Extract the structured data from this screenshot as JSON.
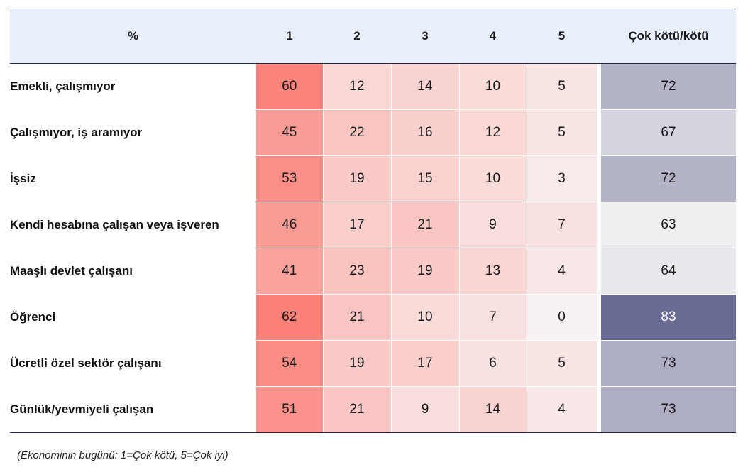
{
  "chart_data": {
    "type": "table",
    "columns": [
      "%",
      "1",
      "2",
      "3",
      "4",
      "5",
      "Çok kötü/kötü"
    ],
    "rows": [
      {
        "label": "Emekli, çalışmıyor",
        "values": [
          60,
          12,
          14,
          10,
          5
        ],
        "kotu": 72
      },
      {
        "label": "Çalışmıyor,  iş aramıyor",
        "values": [
          45,
          22,
          16,
          12,
          5
        ],
        "kotu": 67
      },
      {
        "label": "İşsiz",
        "values": [
          53,
          19,
          15,
          10,
          3
        ],
        "kotu": 72
      },
      {
        "label": "Kendi hesabına çalışan veya işveren",
        "values": [
          46,
          17,
          21,
          9,
          7
        ],
        "kotu": 63
      },
      {
        "label": "Maaşlı devlet çalışanı",
        "values": [
          41,
          23,
          19,
          13,
          4
        ],
        "kotu": 64
      },
      {
        "label": "Öğrenci",
        "values": [
          62,
          21,
          10,
          7,
          0
        ],
        "kotu": 83
      },
      {
        "label": "Ücretli özel sektör çalışanı",
        "values": [
          54,
          19,
          17,
          6,
          5
        ],
        "kotu": 73
      },
      {
        "label": "Günlük/yevmiyeli çalışan",
        "values": [
          51,
          21,
          9,
          14,
          4
        ],
        "kotu": 73
      }
    ],
    "colors": {
      "header_bg": "#e8eefa",
      "rule": "#1e2347",
      "value_scale": [
        "#f8f1f1",
        "#fb8077"
      ],
      "kotu_scale": [
        "#efeff2",
        "#6a6b93"
      ]
    }
  },
  "footnote": "(Ekonominin bugünü: 1=Çok kötü, 5=Çok iyi)"
}
